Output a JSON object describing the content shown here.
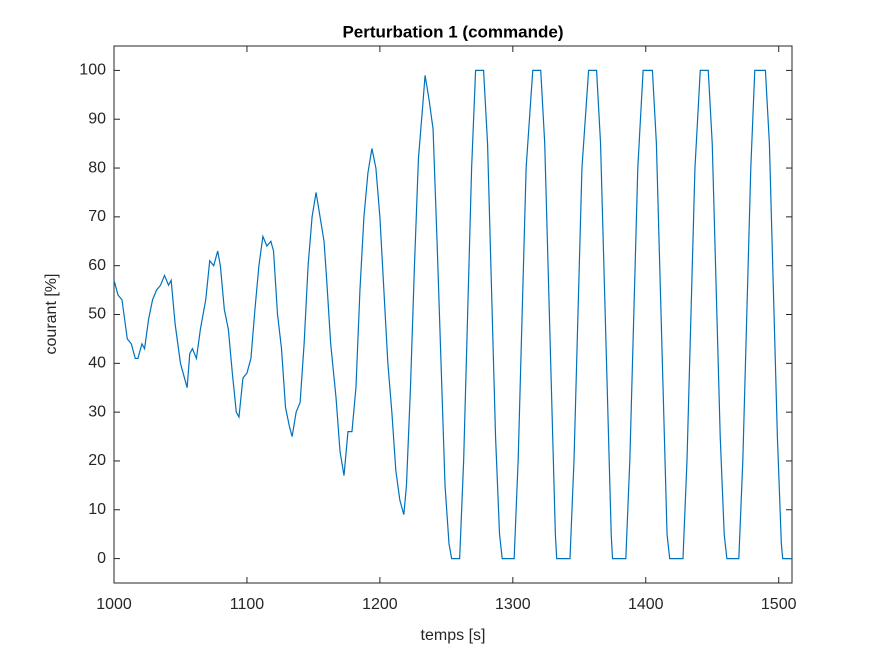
{
  "chart_data": {
    "type": "line",
    "title": "Perturbation 1 (commande)",
    "x_label": "temps [s]",
    "y_label": "courant [%]",
    "xlim": [
      1000,
      1510
    ],
    "xticks": [
      1000,
      1100,
      1200,
      1300,
      1400,
      1500
    ],
    "ylim": [
      -5,
      105
    ],
    "yticks": [
      0,
      10,
      20,
      30,
      40,
      50,
      60,
      70,
      80,
      90,
      100
    ],
    "grid": false,
    "series": [
      {
        "color": "#0072bd",
        "x": [
          1000,
          1003,
          1006,
          1010,
          1013,
          1016,
          1018,
          1021,
          1023,
          1026,
          1029,
          1032,
          1035,
          1038,
          1041,
          1043,
          1046,
          1050,
          1053,
          1055,
          1057,
          1059,
          1062,
          1065,
          1069,
          1072,
          1075,
          1078,
          1080,
          1083,
          1086,
          1089,
          1092,
          1094,
          1097,
          1100,
          1103,
          1106,
          1109,
          1112,
          1115,
          1118,
          1120,
          1123,
          1126,
          1129,
          1132,
          1134,
          1137,
          1140,
          1143,
          1146,
          1149,
          1152,
          1155,
          1158,
          1160,
          1163,
          1167,
          1170,
          1173,
          1176,
          1179,
          1182,
          1185,
          1188,
          1191,
          1194,
          1197,
          1200,
          1203,
          1206,
          1209,
          1212,
          1215,
          1218,
          1220,
          1223,
          1226,
          1229,
          1232,
          1234,
          1237,
          1240,
          1243,
          1246,
          1249,
          1252,
          1254,
          1260,
          1263,
          1266,
          1269,
          1272,
          1278,
          1281,
          1284,
          1287,
          1290,
          1292,
          1301,
          1304,
          1307,
          1310,
          1315,
          1321,
          1324,
          1327,
          1330,
          1332,
          1333,
          1343,
          1346,
          1349,
          1352,
          1357,
          1363,
          1366,
          1369,
          1372,
          1374,
          1375,
          1385,
          1388,
          1391,
          1394,
          1398,
          1405,
          1408,
          1411,
          1414,
          1416,
          1418,
          1428,
          1431,
          1434,
          1437,
          1441,
          1447,
          1450,
          1453,
          1456,
          1459,
          1461,
          1470,
          1473,
          1476,
          1479,
          1482,
          1490,
          1493,
          1496,
          1499,
          1502,
          1503,
          1510
        ],
        "values": [
          57,
          54,
          53,
          45,
          44,
          41,
          41,
          44,
          43,
          49,
          53,
          55,
          56,
          58,
          56,
          57,
          48,
          40,
          37,
          35,
          42,
          43,
          41,
          47,
          53,
          61,
          60,
          63,
          60,
          51,
          47,
          38,
          30,
          29,
          37,
          38,
          41,
          51,
          60,
          66,
          64,
          65,
          63,
          50,
          43,
          31,
          27,
          25,
          30,
          32,
          44,
          60,
          70,
          75,
          70,
          65,
          57,
          44,
          33,
          22,
          17,
          26,
          26,
          35,
          55,
          70,
          79,
          84,
          80,
          70,
          55,
          40,
          30,
          18,
          12,
          9,
          15,
          35,
          60,
          82,
          92,
          99,
          94,
          88,
          65,
          40,
          15,
          3,
          0,
          0,
          20,
          50,
          80,
          100,
          100,
          85,
          55,
          25,
          5,
          0,
          0,
          20,
          50,
          80,
          100,
          100,
          85,
          55,
          25,
          5,
          0,
          0,
          20,
          50,
          80,
          100,
          100,
          85,
          55,
          25,
          5,
          0,
          0,
          20,
          50,
          80,
          100,
          100,
          85,
          55,
          25,
          5,
          0,
          0,
          20,
          50,
          80,
          100,
          100,
          85,
          55,
          25,
          5,
          0,
          0,
          20,
          50,
          80,
          100,
          100,
          85,
          55,
          25,
          3,
          0,
          0
        ]
      }
    ]
  }
}
